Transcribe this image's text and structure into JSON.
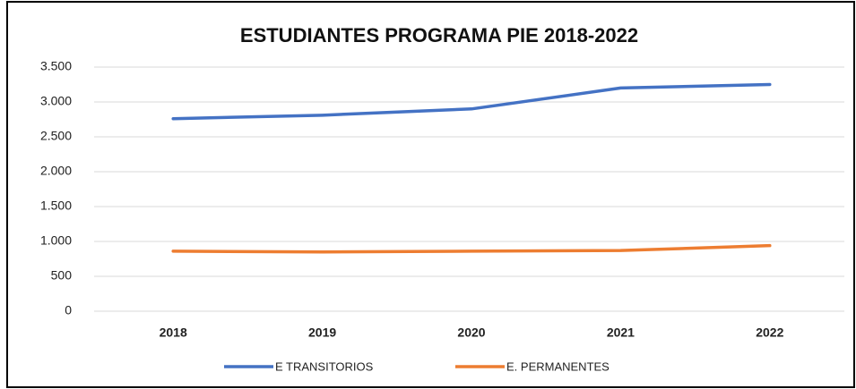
{
  "chart_data": {
    "type": "line",
    "title": "ESTUDIANTES PROGRAMA PIE 2018-2022",
    "categories": [
      "2018",
      "2019",
      "2020",
      "2021",
      "2022"
    ],
    "series": [
      {
        "name": "E TRANSITORIOS",
        "color": "#4472c4",
        "values": [
          2760,
          2810,
          2900,
          3200,
          3250
        ]
      },
      {
        "name": "E. PERMANENTES",
        "color": "#ed7d31",
        "values": [
          860,
          850,
          860,
          870,
          940
        ]
      }
    ],
    "ylim": [
      0,
      3500
    ],
    "yticks": [
      0,
      500,
      {
        "value": 1000,
        "label": "1.000"
      },
      {
        "value": 1500,
        "label": "1.500"
      },
      {
        "value": 2000,
        "label": "2.000"
      },
      {
        "value": 2500,
        "label": "2.500"
      },
      {
        "value": 3000,
        "label": "3.000"
      },
      {
        "value": 3500,
        "label": "3.500"
      }
    ],
    "grid": true,
    "legend": "bottom"
  }
}
